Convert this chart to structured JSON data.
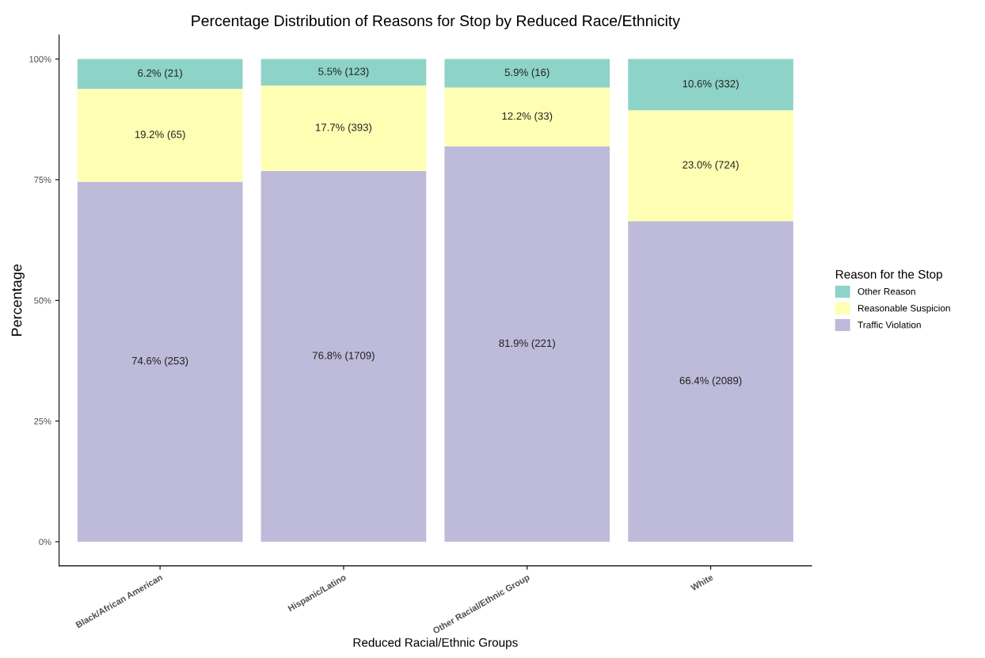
{
  "chart_data": {
    "type": "bar",
    "stacked": true,
    "title": "Percentage Distribution of Reasons for Stop by Reduced Race/Ethnicity",
    "xlabel": "Reduced Racial/Ethnic Groups",
    "ylabel": "Percentage",
    "legend_title": "Reason for the Stop",
    "categories": [
      "Black/African American",
      "Hispanic/Latino",
      "Other Racial/Ethnic Group",
      "White"
    ],
    "series": [
      {
        "name": "Traffic Violation",
        "color": "#bebada",
        "values": [
          74.6,
          76.8,
          81.9,
          66.4
        ],
        "value_labels": [
          "74.6% (253)",
          "76.8% (1709)",
          "81.9% (221)",
          "66.4% (2089)"
        ]
      },
      {
        "name": "Reasonable Suspicion",
        "color": "#ffffb3",
        "values": [
          19.2,
          17.7,
          12.2,
          23.0
        ],
        "value_labels": [
          "19.2% (65)",
          "17.7% (393)",
          "12.2% (33)",
          "23.0% (724)"
        ]
      },
      {
        "name": "Other Reason",
        "color": "#8dd3c7",
        "values": [
          6.2,
          5.5,
          5.9,
          10.6
        ],
        "value_labels": [
          "6.2% (21)",
          "5.5% (123)",
          "5.9% (16)",
          "10.6% (332)"
        ]
      }
    ],
    "ylim": [
      -5,
      105
    ],
    "yticks": [
      {
        "value": 0,
        "label": "0%"
      },
      {
        "value": 25,
        "label": "25%"
      },
      {
        "value": 50,
        "label": "50%"
      },
      {
        "value": 75,
        "label": "75%"
      },
      {
        "value": 100,
        "label": "100%"
      }
    ],
    "grid": false,
    "legend": "right"
  }
}
